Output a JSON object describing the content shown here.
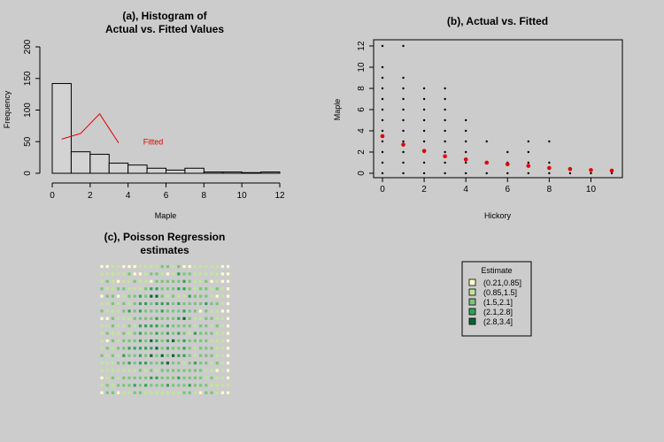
{
  "chart_data": [
    {
      "id": "a",
      "type": "bar",
      "title_line1": "(a), Histogram of",
      "title_line2": "Actual vs. Fitted Values",
      "xlabel": "Maple",
      "ylabel": "Frequency",
      "xlim": [
        0,
        12
      ],
      "ylim": [
        0,
        200
      ],
      "xticks": [
        0,
        2,
        4,
        6,
        8,
        10,
        12
      ],
      "yticks": [
        0,
        50,
        100,
        150,
        200
      ],
      "bins": [
        {
          "from": 0,
          "to": 1,
          "count": 142
        },
        {
          "from": 1,
          "to": 2,
          "count": 34
        },
        {
          "from": 2,
          "to": 3,
          "count": 30
        },
        {
          "from": 3,
          "to": 4,
          "count": 16
        },
        {
          "from": 4,
          "to": 5,
          "count": 13
        },
        {
          "from": 5,
          "to": 6,
          "count": 8
        },
        {
          "from": 6,
          "to": 7,
          "count": 5
        },
        {
          "from": 7,
          "to": 8,
          "count": 8
        },
        {
          "from": 8,
          "to": 9,
          "count": 2
        },
        {
          "from": 9,
          "to": 10,
          "count": 2
        },
        {
          "from": 10,
          "to": 11,
          "count": 1
        },
        {
          "from": 11,
          "to": 12,
          "count": 2
        }
      ],
      "fitted_line": {
        "x": [
          0.5,
          1.5,
          2.5,
          3.5
        ],
        "y": [
          54,
          63,
          94,
          48
        ],
        "color": "#e00000"
      },
      "annotation": {
        "text": "Fitted",
        "x": 4.8,
        "y": 50,
        "color": "#e00000"
      }
    },
    {
      "id": "b",
      "type": "scatter",
      "title": "(b), Actual vs. Fitted",
      "xlabel": "Hickory",
      "ylabel": "Maple",
      "xlim": [
        0,
        11
      ],
      "ylim": [
        0,
        12
      ],
      "xticks": [
        0,
        2,
        4,
        6,
        8,
        10
      ],
      "yticks": [
        0,
        2,
        4,
        6,
        8,
        10,
        12
      ],
      "actual": [
        {
          "x": 0,
          "y": [
            0,
            1,
            2,
            3,
            4,
            5,
            6,
            7,
            8,
            9,
            10,
            12
          ]
        },
        {
          "x": 1,
          "y": [
            0,
            1,
            2,
            3,
            4,
            5,
            6,
            7,
            8,
            9,
            12
          ]
        },
        {
          "x": 2,
          "y": [
            0,
            1,
            2,
            3,
            4,
            5,
            6,
            7,
            8
          ]
        },
        {
          "x": 3,
          "y": [
            0,
            1,
            2,
            3,
            4,
            5,
            6,
            7,
            8
          ]
        },
        {
          "x": 4,
          "y": [
            0,
            1,
            2,
            3,
            4,
            5
          ]
        },
        {
          "x": 5,
          "y": [
            0,
            1,
            3
          ]
        },
        {
          "x": 6,
          "y": [
            0,
            1,
            2
          ]
        },
        {
          "x": 7,
          "y": [
            0,
            1,
            2,
            3
          ]
        },
        {
          "x": 8,
          "y": [
            0,
            1,
            3
          ]
        },
        {
          "x": 9,
          "y": [
            0
          ]
        },
        {
          "x": 10,
          "y": [
            0
          ]
        },
        {
          "x": 11,
          "y": [
            0
          ]
        }
      ],
      "fitted": {
        "x": [
          0,
          1,
          2,
          3,
          4,
          5,
          6,
          7,
          8,
          9,
          10,
          11
        ],
        "y": [
          3.5,
          2.7,
          2.1,
          1.6,
          1.3,
          1.0,
          0.85,
          0.7,
          0.5,
          0.4,
          0.3,
          0.25
        ],
        "color": "#e00000"
      }
    },
    {
      "id": "c",
      "type": "heatmap",
      "title_line1": "(c), Poisson Regression",
      "title_line2": "estimates",
      "legend_title": "Estimate",
      "legend_labels": [
        "(0.21,0.85]",
        "(0.85,1.5]",
        "(1.5,2.1]",
        "(2.1,2.8]",
        "(2.8,3.4]"
      ],
      "palette": [
        "#ffffcc",
        "#c2e699",
        "#78c679",
        "#31a354",
        "#006837"
      ],
      "grid_rows": [
        "001100011112212001111100",
        "111112001221013221111100",
        "121011211022222321120100",
        "211221112332223321221210",
        "022012232442121132221010",
        "112121233233323222232210",
        "211123232223222322021100",
        "002111222232223421122110",
        "112112133332322221221210",
        "121121232232323213222110",
        "102122232432342322221110",
        "121223333342322321222110",
        "212132232424243321222110",
        "111223233223422123221210",
        "111111121212222222211010",
        "012122222332223222212110",
        "121222323222322232221111",
        "022011221111111221022100"
      ]
    }
  ]
}
